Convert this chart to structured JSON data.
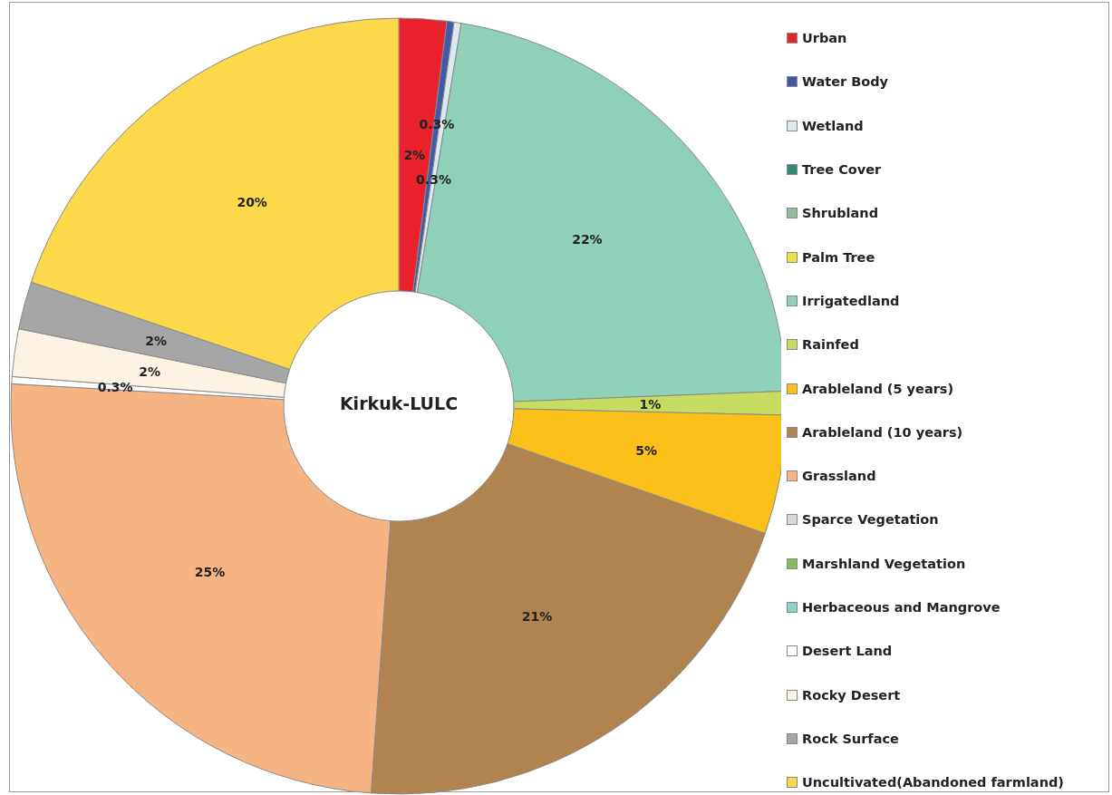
{
  "chart_data": {
    "type": "donut",
    "title": "Kirkuk-LULC",
    "categories": [
      "Urban",
      "Water Body",
      "Wetland",
      "Tree Cover",
      "Shrubland",
      "Palm Tree",
      "Irrigatedland",
      "Rainfed",
      "Arableland (5 years)",
      "Arableland (10 years)",
      "Grassland",
      "Sparce Vegetation",
      "Marshland Vegetation",
      "Herbaceous and Mangrove",
      "Desert Land",
      "Rocky Desert",
      "Rock Surface",
      "Uncultivated(Abandoned farmland)"
    ],
    "values": [
      2,
      0.3,
      0.3,
      null,
      null,
      null,
      22,
      1,
      5,
      21,
      25,
      null,
      null,
      null,
      0.3,
      2,
      2,
      20
    ],
    "value_labels": [
      "2%",
      "0.3%",
      "0.3%",
      null,
      null,
      null,
      "22%",
      "1%",
      "5%",
      "21%",
      "25%",
      null,
      null,
      null,
      "0.3%",
      "2%",
      "2%",
      "20%"
    ],
    "colors": [
      "#e8212a",
      "#3e5aa8",
      "#dde9f0",
      "#2e8b74",
      "#8fbf9f",
      "#f0e040",
      "#8ed1b8",
      "#c5dc60",
      "#fbbf1a",
      "#b0834f",
      "#f7b483",
      "#d9d9d9",
      "#8cb85c",
      "#8ed1c8",
      "#ffffff",
      "#fcf3e4",
      "#a6a6a6",
      "#fdd84a"
    ],
    "legend": "right"
  }
}
